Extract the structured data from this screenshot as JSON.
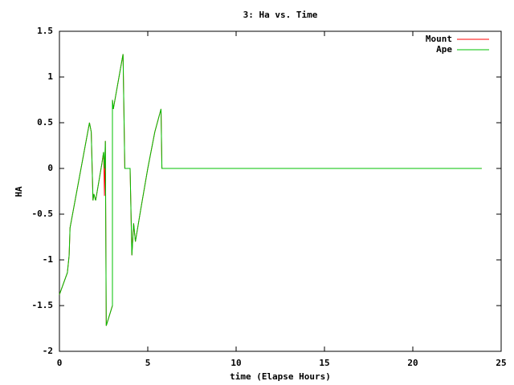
{
  "chart_data": {
    "type": "line",
    "title": "3: Ha vs. Time",
    "xlabel": "time (Elapse Hours)",
    "ylabel": "HA",
    "x": [
      0,
      0.45,
      0.55,
      0.6,
      1.7,
      1.8,
      1.9,
      1.95,
      2.05,
      2.4,
      2.5,
      2.55,
      2.6,
      2.65,
      3.0,
      3.0,
      3.05,
      3.6,
      3.7,
      4.0,
      4.1,
      4.2,
      4.3,
      4.6,
      5.0,
      5.4,
      5.75,
      5.8,
      23.9
    ],
    "series": [
      {
        "name": "Mount",
        "color": "#ff0000",
        "values": [
          -1.38,
          -1.14,
          -0.95,
          -0.65,
          0.5,
          0.4,
          -0.35,
          -0.28,
          -0.35,
          0.05,
          0.18,
          -0.3,
          0.3,
          -1.72,
          -1.5,
          0.75,
          0.65,
          1.25,
          0,
          0,
          -0.95,
          -0.6,
          -0.8,
          -0.45,
          0,
          0.4,
          0.65,
          0,
          0
        ]
      },
      {
        "name": "Ape",
        "color": "#00c000",
        "values": [
          -1.38,
          -1.14,
          -0.95,
          -0.65,
          0.5,
          0.4,
          -0.35,
          -0.28,
          -0.35,
          0.05,
          0.18,
          0.0,
          0.3,
          -1.72,
          -1.5,
          0.75,
          0.65,
          1.25,
          0,
          0,
          -0.95,
          -0.6,
          -0.8,
          -0.45,
          0,
          0.4,
          0.65,
          0,
          0
        ]
      }
    ],
    "xlim": [
      0,
      25
    ],
    "xticks": [
      0,
      5,
      10,
      15,
      20,
      25
    ],
    "ylim": [
      -2,
      1.5
    ],
    "yticks": [
      -2,
      -1.5,
      -1,
      -0.5,
      0,
      0.5,
      1,
      1.5
    ],
    "grid": false,
    "legend": "top-right"
  }
}
